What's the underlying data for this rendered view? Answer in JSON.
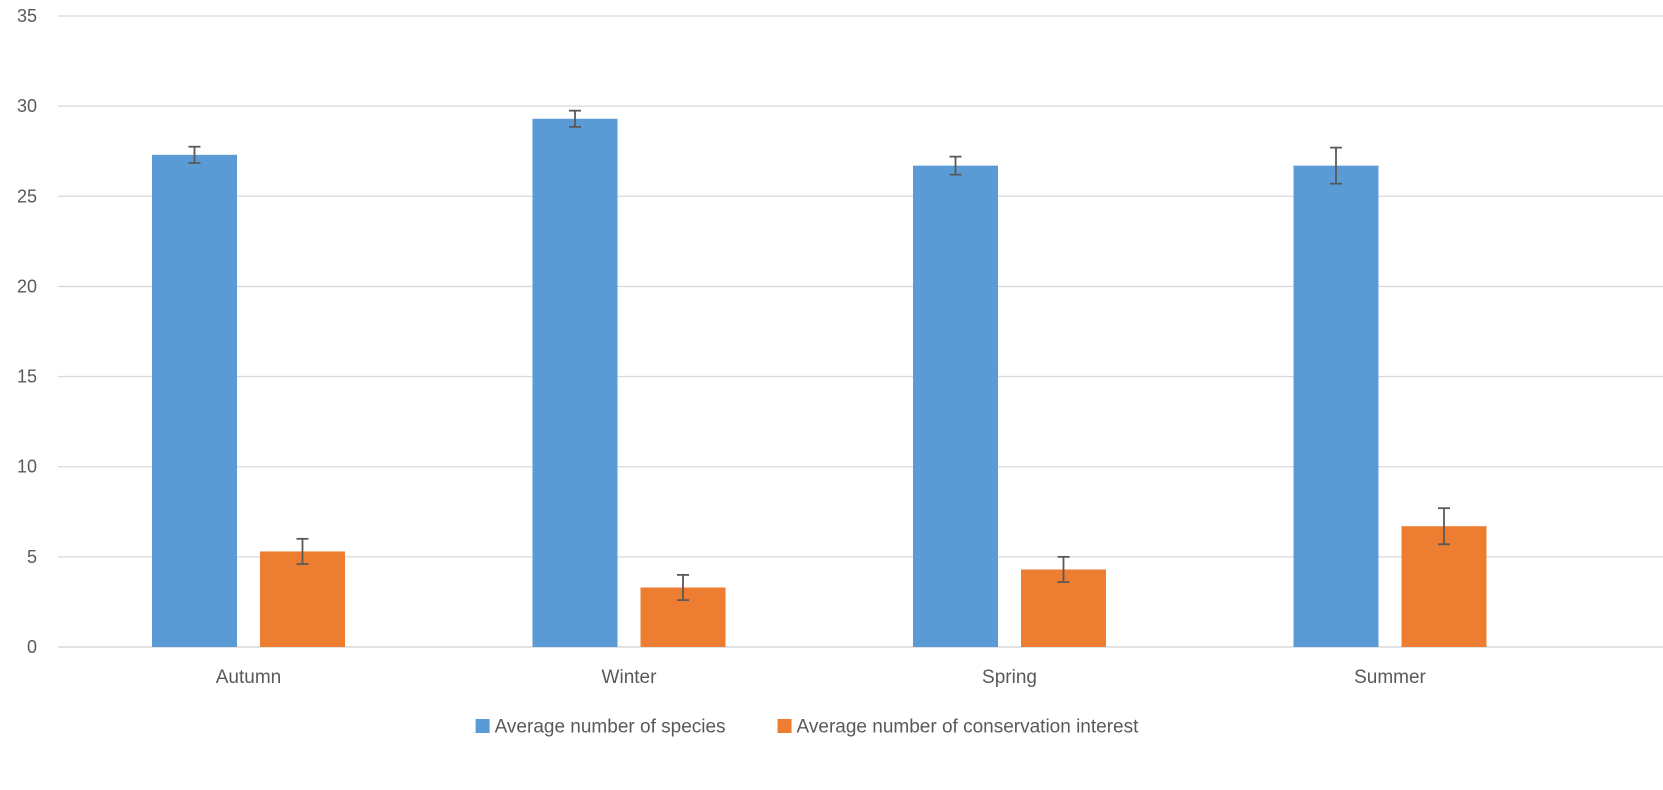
{
  "chart_data": {
    "type": "bar",
    "title": "",
    "xlabel": "",
    "ylabel": "",
    "categories": [
      "Autumn",
      "Winter",
      "Spring",
      "Summer"
    ],
    "ylim": [
      0,
      35
    ],
    "yticks": [
      0,
      5,
      10,
      15,
      20,
      25,
      30,
      35
    ],
    "ytick_labels": [
      "0",
      "5",
      "10",
      "15",
      "20",
      "25",
      "30",
      "35"
    ],
    "grid": true,
    "legend_position": "bottom",
    "error_bars": true,
    "series": [
      {
        "name": "Average number of species",
        "color": "#5B9BD5",
        "values": [
          27.3,
          29.3,
          26.7,
          26.7
        ],
        "errors": [
          0.45,
          0.45,
          0.5,
          1.0
        ]
      },
      {
        "name": "Average number of conservation interest",
        "color": "#ED7D31",
        "values": [
          5.3,
          3.3,
          4.3,
          6.7
        ],
        "errors": [
          0.7,
          0.7,
          0.7,
          1.0
        ]
      }
    ]
  }
}
